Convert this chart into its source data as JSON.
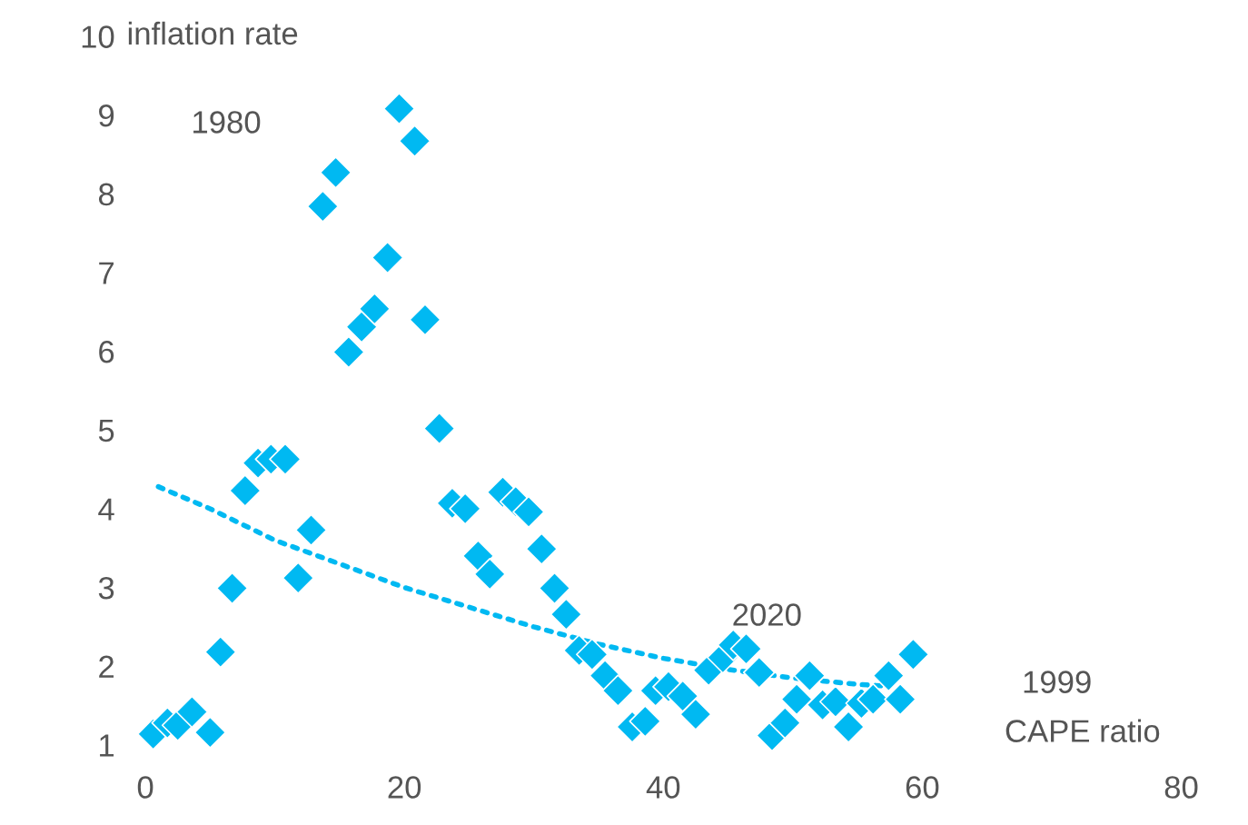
{
  "chart_data": {
    "type": "scatter",
    "xlabel": "CAPE ratio",
    "ylabel": "inflation rate",
    "xlim": [
      0,
      80
    ],
    "xticks": [
      0,
      20,
      40,
      60,
      80
    ],
    "ylim": [
      1,
      10
    ],
    "yticks": [
      1,
      2,
      3,
      4,
      5,
      6,
      7,
      8,
      9,
      10
    ],
    "grid": false,
    "legend": false,
    "series": [
      {
        "marker": "diamond",
        "color": "#00b9f2",
        "x": [
          0.6,
          1.7,
          2.5,
          3.6,
          5,
          5.8,
          6.7,
          7.7,
          8.7,
          9.7,
          10.8,
          11.8,
          12.8,
          13.7,
          14.7,
          15.7,
          16.7,
          17.7,
          18.7,
          19.6,
          20.8,
          21.6,
          22.7,
          23.7,
          24.7,
          25.7,
          26.6,
          27.6,
          28.6,
          29.6,
          30.6,
          31.6,
          32.5,
          33.5,
          34.5,
          35.5,
          36.5,
          37.6,
          38.6,
          39.4,
          40.4,
          41.5,
          42.5,
          43.5,
          44.6,
          45.4,
          46.4,
          47.4,
          48.4,
          49.4,
          50.3,
          51.3,
          52.3,
          53.3,
          54.3,
          55.3,
          56.2,
          57.4,
          58.3,
          59.3
        ],
        "values": [
          1.14,
          1.28,
          1.25,
          1.42,
          1.16,
          2.18,
          2.99,
          4.23,
          4.58,
          4.63,
          4.63,
          3.12,
          3.73,
          7.84,
          8.27,
          5.99,
          6.31,
          6.54,
          7.19,
          9.08,
          8.67,
          6.4,
          5.02,
          4.07,
          4.0,
          3.4,
          3.17,
          4.21,
          4.09,
          3.96,
          3.49,
          2.99,
          2.66,
          2.2,
          2.15,
          1.88,
          1.69,
          1.23,
          1.3,
          1.69,
          1.74,
          1.62,
          1.39,
          1.95,
          2.11,
          2.27,
          2.22,
          1.92,
          1.12,
          1.28,
          1.58,
          1.88,
          1.51,
          1.55,
          1.23,
          1.53,
          1.58,
          1.88,
          1.58,
          2.15
        ]
      },
      {
        "type": "line",
        "color": "#00b9f2",
        "line_style": "dotted",
        "x": [
          1,
          5,
          10,
          15,
          20,
          25,
          30,
          35,
          40,
          45,
          50,
          55,
          57
        ],
        "values": [
          4.28,
          4.0,
          3.6,
          3.3,
          3.0,
          2.75,
          2.5,
          2.28,
          2.1,
          1.96,
          1.85,
          1.77,
          1.75
        ]
      }
    ],
    "annotations": [
      "1980",
      "2020",
      "1999"
    ]
  }
}
